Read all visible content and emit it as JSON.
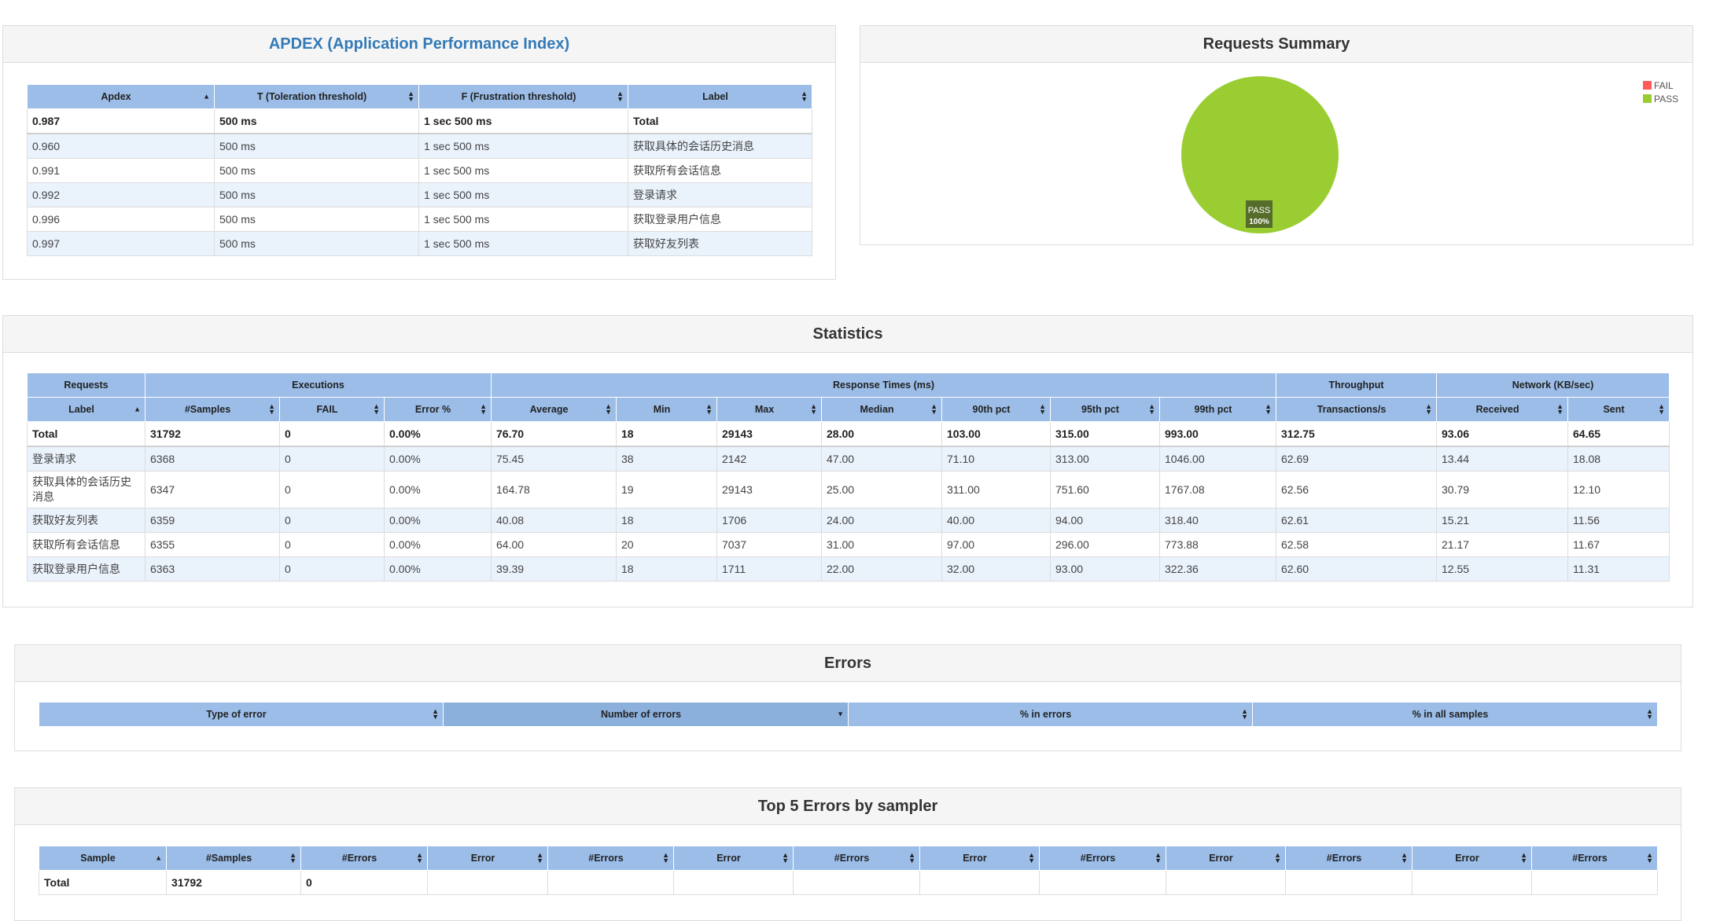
{
  "apdex": {
    "title": "APDEX (Application Performance Index)",
    "headers": [
      "Apdex",
      "T (Toleration threshold)",
      "F (Frustration threshold)",
      "Label"
    ],
    "rows": [
      [
        "0.987",
        "500 ms",
        "1 sec 500 ms",
        "Total"
      ],
      [
        "0.960",
        "500 ms",
        "1 sec 500 ms",
        "获取具体的会话历史消息"
      ],
      [
        "0.991",
        "500 ms",
        "1 sec 500 ms",
        "获取所有会话信息"
      ],
      [
        "0.992",
        "500 ms",
        "1 sec 500 ms",
        "登录请求"
      ],
      [
        "0.996",
        "500 ms",
        "1 sec 500 ms",
        "获取登录用户信息"
      ],
      [
        "0.997",
        "500 ms",
        "1 sec 500 ms",
        "获取好友列表"
      ]
    ]
  },
  "summary": {
    "title": "Requests Summary",
    "legend": [
      {
        "label": "FAIL",
        "color": "#ff5b5b"
      },
      {
        "label": "PASS",
        "color": "#9acd32"
      }
    ],
    "pie_label": "PASS",
    "pie_percent": "100%"
  },
  "chart_data": {
    "type": "pie",
    "title": "Requests Summary",
    "categories": [
      "FAIL",
      "PASS"
    ],
    "values": [
      0,
      100
    ],
    "colors": [
      "#ff5b5b",
      "#9acd32"
    ],
    "legend_position": "top-right"
  },
  "statistics": {
    "title": "Statistics",
    "groups": [
      "Requests",
      "Executions",
      "Response Times (ms)",
      "Throughput",
      "Network (KB/sec)"
    ],
    "headers": [
      "Label",
      "#Samples",
      "FAIL",
      "Error %",
      "Average",
      "Min",
      "Max",
      "Median",
      "90th pct",
      "95th pct",
      "99th pct",
      "Transactions/s",
      "Received",
      "Sent"
    ],
    "rows": [
      [
        "Total",
        "31792",
        "0",
        "0.00%",
        "76.70",
        "18",
        "29143",
        "28.00",
        "103.00",
        "315.00",
        "993.00",
        "312.75",
        "93.06",
        "64.65"
      ],
      [
        "登录请求",
        "6368",
        "0",
        "0.00%",
        "75.45",
        "38",
        "2142",
        "47.00",
        "71.10",
        "313.00",
        "1046.00",
        "62.69",
        "13.44",
        "18.08"
      ],
      [
        "获取具体的会话历史消息",
        "6347",
        "0",
        "0.00%",
        "164.78",
        "19",
        "29143",
        "25.00",
        "311.00",
        "751.60",
        "1767.08",
        "62.56",
        "30.79",
        "12.10"
      ],
      [
        "获取好友列表",
        "6359",
        "0",
        "0.00%",
        "40.08",
        "18",
        "1706",
        "24.00",
        "40.00",
        "94.00",
        "318.40",
        "62.61",
        "15.21",
        "11.56"
      ],
      [
        "获取所有会话信息",
        "6355",
        "0",
        "0.00%",
        "64.00",
        "20",
        "7037",
        "31.00",
        "97.00",
        "296.00",
        "773.88",
        "62.58",
        "21.17",
        "11.67"
      ],
      [
        "获取登录用户信息",
        "6363",
        "0",
        "0.00%",
        "39.39",
        "18",
        "1711",
        "22.00",
        "32.00",
        "93.00",
        "322.36",
        "62.60",
        "12.55",
        "11.31"
      ]
    ]
  },
  "errors": {
    "title": "Errors",
    "headers": [
      "Type of error",
      "Number of errors",
      "% in errors",
      "% in all samples"
    ]
  },
  "top5": {
    "title": "Top 5 Errors by sampler",
    "headers": [
      "Sample",
      "#Samples",
      "#Errors",
      "Error",
      "#Errors",
      "Error",
      "#Errors",
      "Error",
      "#Errors",
      "Error",
      "#Errors",
      "Error",
      "#Errors"
    ],
    "rows": [
      [
        "Total",
        "31792",
        "0",
        "",
        "",
        "",
        "",
        "",
        "",
        "",
        "",
        "",
        ""
      ]
    ]
  }
}
